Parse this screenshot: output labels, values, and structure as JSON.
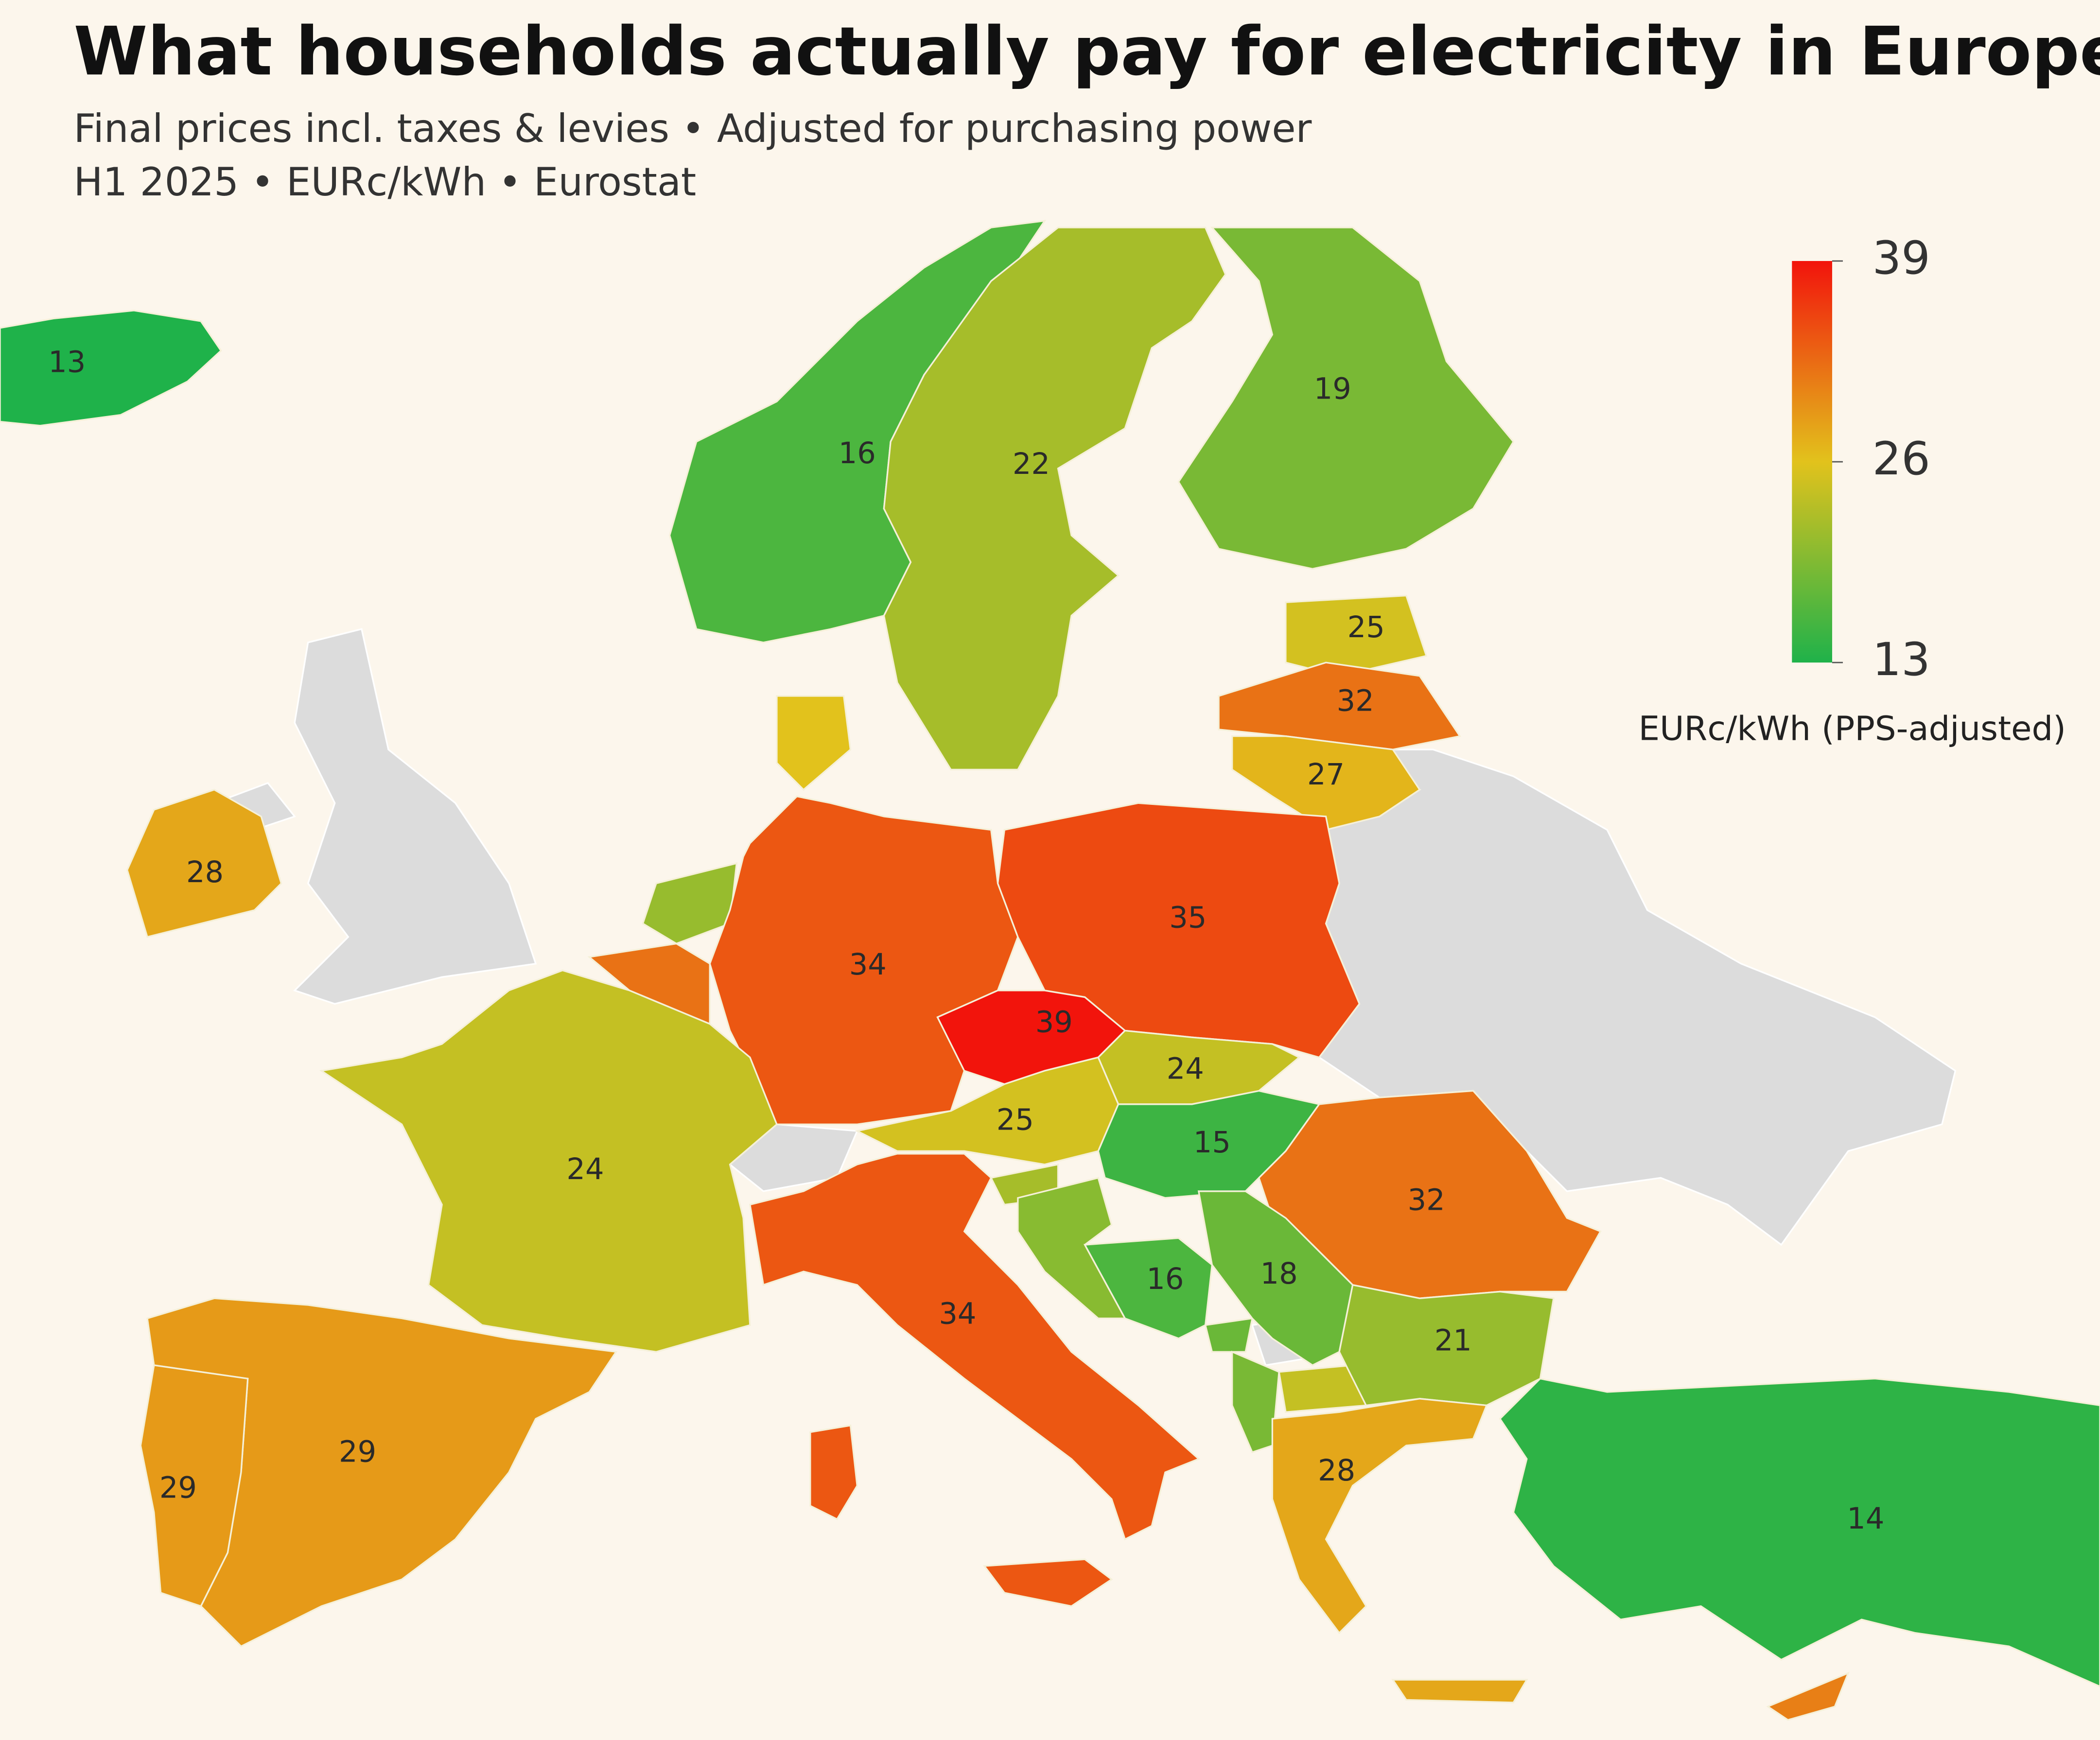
{
  "map": {
    "title": "What households actually pay for electricity in Europe",
    "subtitle": [
      "Final prices incl. taxes & levies • Adjusted for purchasing power",
      "H1 2025 • EURc/kWh • Eurostat"
    ],
    "legend": {
      "title": "EURc/kWh (PPS-adjusted)",
      "clim": [
        13,
        39
      ],
      "cticks": [
        13,
        26,
        39
      ],
      "colors": [
        "#1fb24a",
        "#e2c21c",
        "#f2140c"
      ]
    },
    "values": [
      13,
      16,
      22,
      19,
      25,
      32,
      27,
      28,
      34,
      35,
      39,
      24,
      25,
      15,
      32,
      24,
      34,
      29,
      29,
      16,
      18,
      21,
      28,
      14
    ],
    "unlabeled_values": [
      26,
      21,
      32,
      22,
      20,
      18,
      24,
      19,
      31
    ]
  }
}
